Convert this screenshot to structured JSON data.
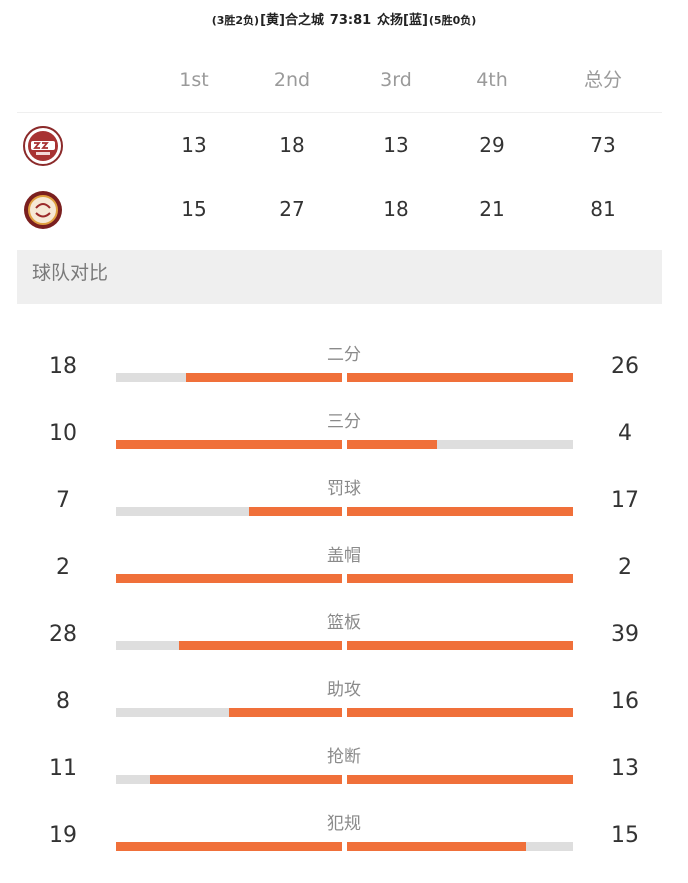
{
  "header": {
    "home_record": "(3胜2负)",
    "home_team": "[黄]合之城",
    "score": "73:81",
    "away_team": "众扬[蓝]",
    "away_record": "(5胜0负)"
  },
  "scoreboard": {
    "columns": [
      "1st",
      "2nd",
      "3rd",
      "4th",
      "总分"
    ],
    "rows": [
      {
        "logo": "heshicheng-team-logo",
        "scores": [
          "13",
          "18",
          "13",
          "29",
          "73"
        ]
      },
      {
        "logo": "zhongyang-team-logo",
        "scores": [
          "15",
          "27",
          "18",
          "21",
          "81"
        ]
      }
    ]
  },
  "comparison": {
    "title": "球队对比",
    "colors": {
      "fill": "#f0703a",
      "track": "#dedede"
    },
    "stats": [
      {
        "label": "二分",
        "left": "18",
        "right": "26",
        "left_ratio": 0.69,
        "right_ratio": 1.0
      },
      {
        "label": "三分",
        "left": "10",
        "right": "4",
        "left_ratio": 1.0,
        "right_ratio": 0.4
      },
      {
        "label": "罚球",
        "left": "7",
        "right": "17",
        "left_ratio": 0.41,
        "right_ratio": 1.0
      },
      {
        "label": "盖帽",
        "left": "2",
        "right": "2",
        "left_ratio": 1.0,
        "right_ratio": 1.0
      },
      {
        "label": "篮板",
        "left": "28",
        "right": "39",
        "left_ratio": 0.72,
        "right_ratio": 1.0
      },
      {
        "label": "助攻",
        "left": "8",
        "right": "16",
        "left_ratio": 0.5,
        "right_ratio": 1.0
      },
      {
        "label": "抢断",
        "left": "11",
        "right": "13",
        "left_ratio": 0.85,
        "right_ratio": 1.0
      },
      {
        "label": "犯规",
        "left": "19",
        "right": "15",
        "left_ratio": 1.0,
        "right_ratio": 0.79
      }
    ]
  }
}
